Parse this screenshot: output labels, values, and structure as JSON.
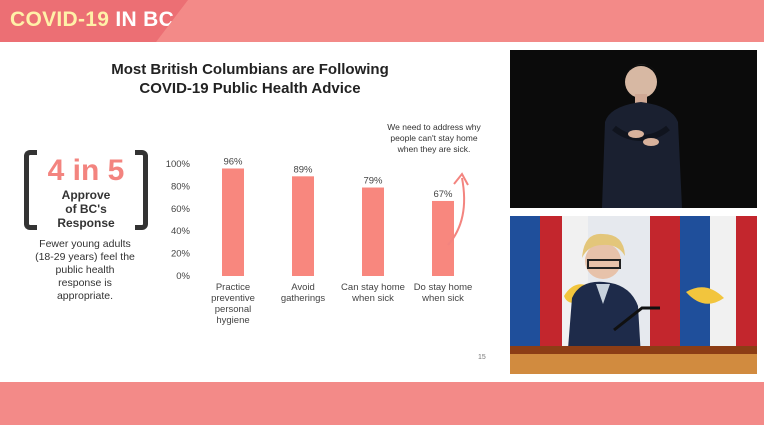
{
  "banner": {
    "brand_main": "COVID-19",
    "brand_suffix": "IN BC"
  },
  "slide": {
    "title_line1": "Most British Columbians are Following",
    "title_line2": "COVID-19 Public Health Advice",
    "stat": {
      "value": "4 in 5",
      "label_line1": "Approve",
      "label_line2": "of BC's",
      "label_line3": "Response"
    },
    "note_lines": [
      "Fewer young adults",
      "(18-29 years) feel the",
      "public health",
      "response is",
      "appropriate."
    ],
    "annotation_lines": [
      "We need to address why",
      "people can't stay home",
      "when they are sick."
    ],
    "slide_number": "15"
  },
  "chart_data": {
    "type": "bar",
    "categories": [
      [
        "Practice",
        "preventive",
        "personal",
        "hygiene"
      ],
      [
        "Avoid",
        "gatherings"
      ],
      [
        "Can stay home",
        "when sick"
      ],
      [
        "Do stay home",
        "when sick"
      ]
    ],
    "values": [
      96,
      89,
      79,
      67
    ],
    "data_labels": [
      "96%",
      "89%",
      "79%",
      "67%"
    ],
    "y_ticks": [
      "100%",
      "80%",
      "60%",
      "40%",
      "20%",
      "0%"
    ],
    "ylim": [
      0,
      100
    ],
    "bar_color": "#f8877e",
    "grid": false
  },
  "colors": {
    "banner": "#f38a88",
    "brand_bg": "#ec6f74",
    "brand_text": "#fff1a8",
    "accent": "#f3847f"
  },
  "videos": {
    "interpreter_icon": "sign-language-interpreter-video",
    "speaker_icon": "speaker-video"
  }
}
